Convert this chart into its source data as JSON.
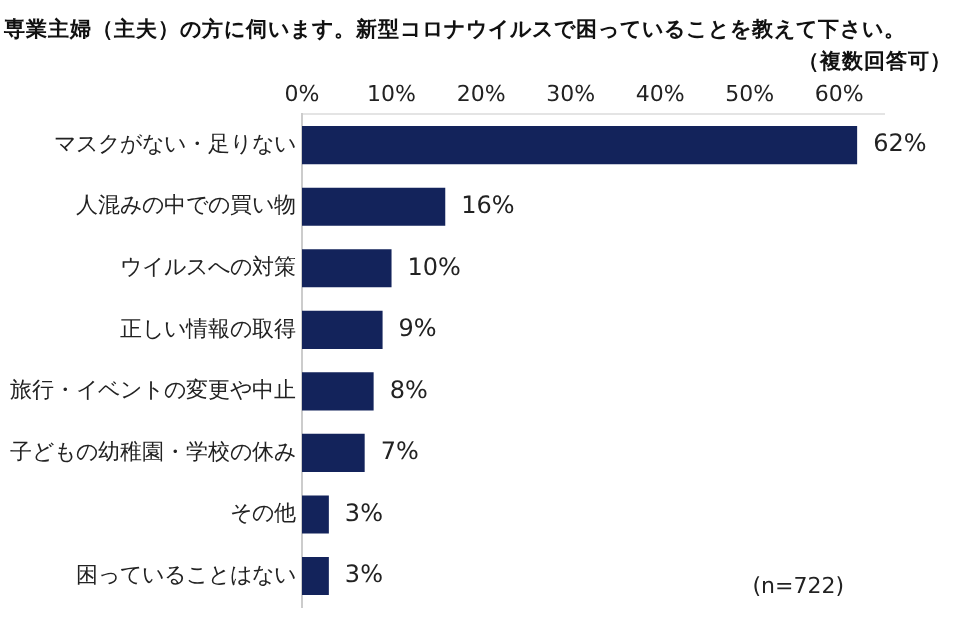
{
  "chart_data": {
    "type": "bar",
    "orientation": "horizontal",
    "title": "専業主婦（主夫）の方に伺います。新型コロナウイルスで困っていることを教えて下さい。",
    "subtitle": "（複数回答可）",
    "categories": [
      "マスクがない・足りない",
      "人混みの中での買い物",
      "ウイルスへの対策",
      "正しい情報の取得",
      "旅行・イベントの変更や中止",
      "子どもの幼稚園・学校の休み",
      "その他",
      "困っていることはない"
    ],
    "values": [
      62,
      16,
      10,
      9,
      8,
      7,
      3,
      3
    ],
    "value_labels": [
      "62%",
      "16%",
      "10%",
      "9%",
      "8%",
      "7%",
      "3%",
      "3%"
    ],
    "color": "#13235b",
    "xlim": [
      0,
      65
    ],
    "xticks": [
      {
        "value": 0,
        "label": "0%"
      },
      {
        "value": 10,
        "label": "10%"
      },
      {
        "value": 20,
        "label": "20%"
      },
      {
        "value": 30,
        "label": "30%"
      },
      {
        "value": 40,
        "label": "40%"
      },
      {
        "value": 50,
        "label": "50%"
      },
      {
        "value": 60,
        "label": "60%"
      }
    ],
    "grid": false,
    "legend": false,
    "annotations": [
      "(n=722)"
    ]
  }
}
